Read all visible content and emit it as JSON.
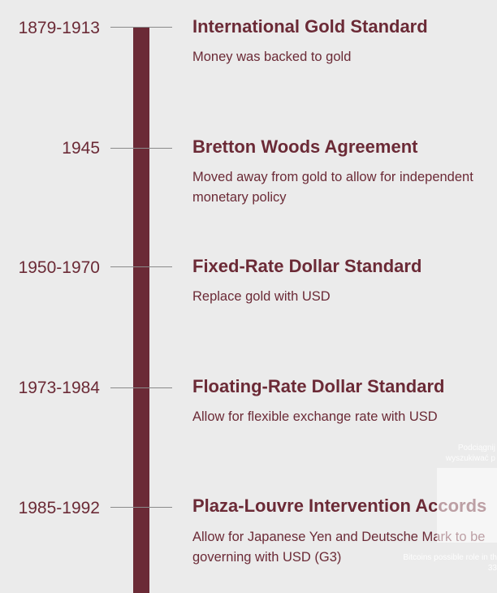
{
  "events": [
    {
      "year": "1879-1913",
      "title": "International Gold Standard",
      "description": "Money was backed to gold"
    },
    {
      "year": "1945",
      "title": "Bretton Woods Agreement",
      "description": "Moved away from gold to allow for independent monetary policy"
    },
    {
      "year": "1950-1970",
      "title": "Fixed-Rate Dollar Standard",
      "description": "Replace gold with USD"
    },
    {
      "year": "1973-1984",
      "title": "Floating-Rate Dollar Standard",
      "description": "Allow for flexible exchange rate with USD"
    },
    {
      "year": "1985-1992",
      "title": "Plaza-Louvre Intervention Accords",
      "description": "Allow for Japanese Yen and Deutsche Mark to be governing with USD (G3)"
    }
  ],
  "overlay": {
    "tip_line1": "Podciągnij",
    "tip_line2": "wyszukiwać p",
    "caption_line1": "Bitcoins possible role in th",
    "caption_line2": "33"
  },
  "colors": {
    "accent": "#6b2a36",
    "background": "#ebebeb"
  }
}
